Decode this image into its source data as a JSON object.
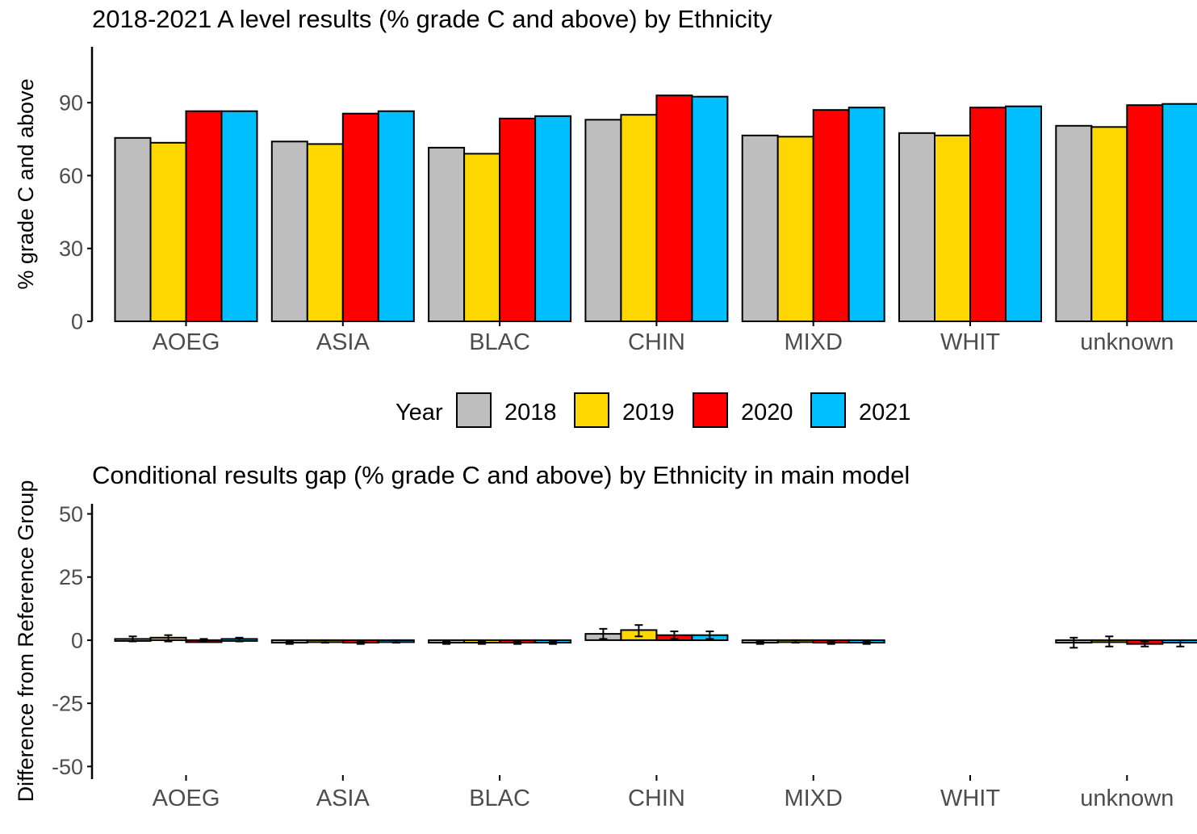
{
  "colors": {
    "2018": "#bebebe",
    "2019": "#ffd700",
    "2020": "#ff0000",
    "2021": "#00bfff",
    "axis": "#000000",
    "tick_text": "#4d4d4d"
  },
  "legend": {
    "title": "Year",
    "items": [
      {
        "label": "2018",
        "color": "#bebebe"
      },
      {
        "label": "2019",
        "color": "#ffd700"
      },
      {
        "label": "2020",
        "color": "#ff0000"
      },
      {
        "label": "2021",
        "color": "#00bfff"
      }
    ]
  },
  "chart_data": [
    {
      "type": "bar",
      "title": "2018-2021 A level results (% grade C and above) by Ethnicity",
      "xlabel": "",
      "ylabel": "% grade C and above",
      "ylim": [
        0,
        113
      ],
      "yticks": [
        0,
        30,
        60,
        90
      ],
      "categories": [
        "AOEG",
        "ASIA",
        "BLAC",
        "CHIN",
        "MIXD",
        "WHIT",
        "unknown"
      ],
      "series": [
        {
          "name": "2018",
          "values": [
            75.5,
            74,
            71.5,
            83,
            76.5,
            77.5,
            80.5
          ]
        },
        {
          "name": "2019",
          "values": [
            73.5,
            73,
            69,
            85,
            76,
            76.5,
            80
          ]
        },
        {
          "name": "2020",
          "values": [
            86.5,
            85.5,
            83.5,
            93,
            87,
            88,
            89
          ]
        },
        {
          "name": "2021",
          "values": [
            86.5,
            86.5,
            84.5,
            92.5,
            88,
            88.5,
            89.5
          ]
        }
      ],
      "legend_position": "bottom"
    },
    {
      "type": "bar",
      "title": "Conditional results gap (% grade C and above) by Ethnicity in main model",
      "xlabel": "",
      "ylabel": "Difference from Reference Group",
      "ylim": [
        -55,
        54
      ],
      "yticks": [
        -50,
        -25,
        0,
        25,
        50
      ],
      "categories": [
        "AOEG",
        "ASIA",
        "BLAC",
        "CHIN",
        "MIXD",
        "WHIT",
        "unknown"
      ],
      "series": [
        {
          "name": "2018",
          "values": [
            0.5,
            -1,
            -1,
            2.5,
            -1,
            null,
            -1
          ],
          "error_low": [
            -0.5,
            -1.5,
            -1.5,
            0.5,
            -1.5,
            null,
            -3
          ],
          "error_high": [
            1.5,
            -0.5,
            -0.5,
            4.5,
            -0.5,
            null,
            1
          ]
        },
        {
          "name": "2019",
          "values": [
            1,
            -0.5,
            -1,
            4,
            -0.5,
            null,
            -0.5
          ],
          "error_low": [
            -0.5,
            -1,
            -1.5,
            1.5,
            -1,
            null,
            -2.5
          ],
          "error_high": [
            2,
            0,
            -0.5,
            6,
            0,
            null,
            1.5
          ]
        },
        {
          "name": "2020",
          "values": [
            0,
            -1,
            -1,
            2,
            -1,
            null,
            -1.5
          ],
          "error_low": [
            -0.5,
            -1.5,
            -1.5,
            0.5,
            -1.5,
            null,
            -2.5
          ],
          "error_high": [
            0.5,
            -0.5,
            -0.5,
            3.5,
            -0.5,
            null,
            -0.5
          ]
        },
        {
          "name": "2021",
          "values": [
            0.5,
            -0.5,
            -1,
            2,
            -1,
            null,
            -1
          ],
          "error_low": [
            -0.5,
            -1,
            -1.5,
            0.5,
            -1.5,
            null,
            -2.5
          ],
          "error_high": [
            1,
            0,
            -0.5,
            3.5,
            -0.5,
            null,
            0
          ]
        }
      ]
    }
  ]
}
